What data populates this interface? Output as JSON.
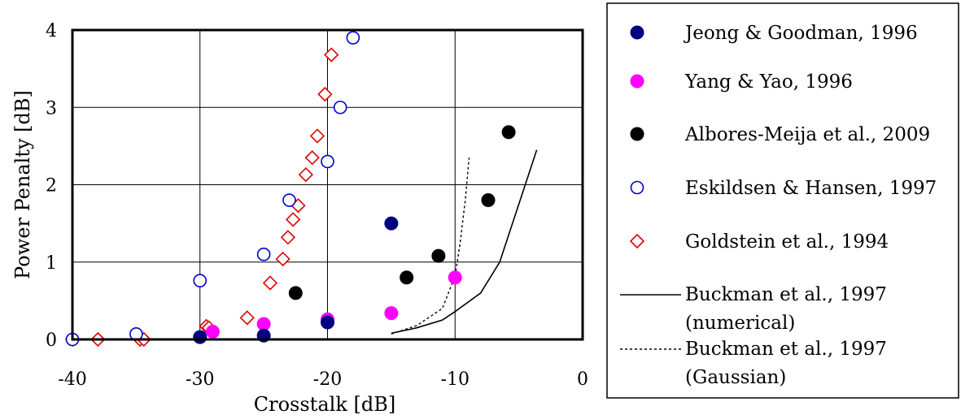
{
  "chart_data": {
    "type": "scatter",
    "xlabel": "Crosstalk [dB]",
    "ylabel": "Power Penalty [dB]",
    "xlim": [
      -40,
      0
    ],
    "ylim": [
      0,
      4
    ],
    "x_ticks": [
      "-40",
      "-30",
      "-20",
      "-10",
      "0"
    ],
    "y_ticks": [
      "0",
      "1",
      "2",
      "3",
      "4"
    ],
    "grid": true,
    "legend_position": "right",
    "series": [
      {
        "name": "Jeong & Goodman, 1996",
        "marker": "filled-circle",
        "color": "#000080",
        "points": [
          [
            -30,
            0.03
          ],
          [
            -25,
            0.05
          ],
          [
            -20,
            0.22
          ],
          [
            -15,
            1.5
          ]
        ]
      },
      {
        "name": "Yang & Yao, 1996",
        "marker": "filled-circle",
        "color": "#ff00ff",
        "points": [
          [
            -29,
            0.1
          ],
          [
            -25,
            0.2
          ],
          [
            -20,
            0.26
          ],
          [
            -15,
            0.34
          ],
          [
            -10,
            0.8
          ]
        ]
      },
      {
        "name": "Albores-Meija et al., 2009",
        "marker": "filled-circle",
        "color": "#000000",
        "points": [
          [
            -22.5,
            0.6
          ],
          [
            -13.8,
            0.8
          ],
          [
            -11.3,
            1.08
          ],
          [
            -7.4,
            1.8
          ],
          [
            -5.8,
            2.68
          ]
        ]
      },
      {
        "name": "Eskildsen & Hansen, 1997",
        "marker": "open-circle",
        "color": "#0000cc",
        "points": [
          [
            -40,
            0.0
          ],
          [
            -35,
            0.07
          ],
          [
            -30,
            0.76
          ],
          [
            -25,
            1.1
          ],
          [
            -23,
            1.8
          ],
          [
            -20,
            2.3
          ],
          [
            -19,
            3.0
          ],
          [
            -18,
            3.9
          ]
        ]
      },
      {
        "name": "Goldstein et al., 1994",
        "marker": "open-diamond",
        "color": "#e00000",
        "points": [
          [
            -40,
            0.0
          ],
          [
            -38,
            0.0
          ],
          [
            -34.7,
            0.0
          ],
          [
            -34.4,
            0.0
          ],
          [
            -29.5,
            0.17
          ],
          [
            -29.3,
            0.15
          ],
          [
            -26.3,
            0.28
          ],
          [
            -24.5,
            0.73
          ],
          [
            -23.5,
            1.04
          ],
          [
            -23.1,
            1.32
          ],
          [
            -22.7,
            1.55
          ],
          [
            -22.3,
            1.73
          ],
          [
            -21.7,
            2.13
          ],
          [
            -21.2,
            2.35
          ],
          [
            -20.8,
            2.63
          ],
          [
            -20.2,
            3.17
          ],
          [
            -19.7,
            3.68
          ]
        ]
      },
      {
        "name": "Buckman et al., 1997\n(numerical)",
        "marker": "solid-line",
        "color": "#000000",
        "points": [
          [
            -15,
            0.08
          ],
          [
            -13,
            0.15
          ],
          [
            -11,
            0.25
          ],
          [
            -10,
            0.36
          ],
          [
            -8,
            0.6
          ],
          [
            -6.5,
            1.0
          ],
          [
            -5.5,
            1.5
          ],
          [
            -4.5,
            2.0
          ],
          [
            -3.6,
            2.45
          ]
        ]
      },
      {
        "name": "Buckman et al., 1997\n(Gaussian)",
        "marker": "dotted-line",
        "color": "#000000",
        "points": [
          [
            -15,
            0.07
          ],
          [
            -13,
            0.18
          ],
          [
            -11,
            0.4
          ],
          [
            -10,
            0.82
          ],
          [
            -9.6,
            1.25
          ],
          [
            -9.2,
            1.8
          ],
          [
            -8.9,
            2.35
          ]
        ]
      }
    ]
  }
}
